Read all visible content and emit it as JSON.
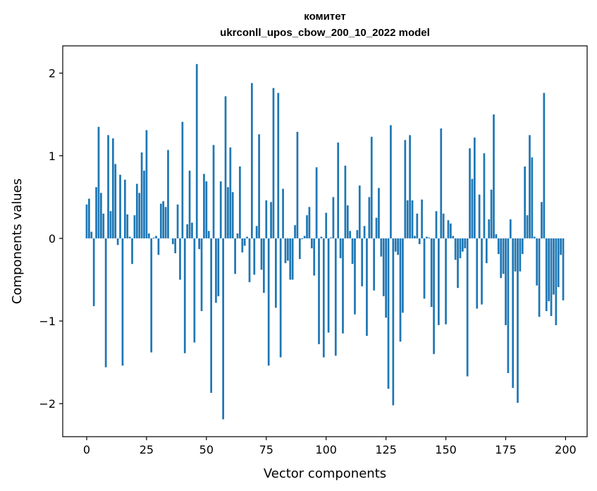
{
  "chart_data": {
    "type": "bar",
    "title": "комитет",
    "subtitle": "ukrconll_upos_cbow_200_10_2022 model",
    "xlabel": "Vector components",
    "ylabel": "Components values",
    "xlim": [
      -10,
      209
    ],
    "ylim": [
      -2.4,
      2.33
    ],
    "xticks": [
      0,
      25,
      50,
      75,
      100,
      125,
      150,
      175,
      200
    ],
    "yticks": [
      -2,
      -1,
      0,
      1,
      2
    ],
    "ytick_labels": [
      "−2",
      "−1",
      "0",
      "1",
      "2"
    ],
    "grid": false,
    "color": "#1f77b4",
    "x": [
      0,
      1,
      2,
      3,
      4,
      5,
      6,
      7,
      8,
      9,
      10,
      11,
      12,
      13,
      14,
      15,
      16,
      17,
      18,
      19,
      20,
      21,
      22,
      23,
      24,
      25,
      26,
      27,
      28,
      29,
      30,
      31,
      32,
      33,
      34,
      35,
      36,
      37,
      38,
      39,
      40,
      41,
      42,
      43,
      44,
      45,
      46,
      47,
      48,
      49,
      50,
      51,
      52,
      53,
      54,
      55,
      56,
      57,
      58,
      59,
      60,
      61,
      62,
      63,
      64,
      65,
      66,
      67,
      68,
      69,
      70,
      71,
      72,
      73,
      74,
      75,
      76,
      77,
      78,
      79,
      80,
      81,
      82,
      83,
      84,
      85,
      86,
      87,
      88,
      89,
      90,
      91,
      92,
      93,
      94,
      95,
      96,
      97,
      98,
      99,
      100,
      101,
      102,
      103,
      104,
      105,
      106,
      107,
      108,
      109,
      110,
      111,
      112,
      113,
      114,
      115,
      116,
      117,
      118,
      119,
      120,
      121,
      122,
      123,
      124,
      125,
      126,
      127,
      128,
      129,
      130,
      131,
      132,
      133,
      134,
      135,
      136,
      137,
      138,
      139,
      140,
      141,
      142,
      143,
      144,
      145,
      146,
      147,
      148,
      149,
      150,
      151,
      152,
      153,
      154,
      155,
      156,
      157,
      158,
      159,
      160,
      161,
      162,
      163,
      164,
      165,
      166,
      167,
      168,
      169,
      170,
      171,
      172,
      173,
      174,
      175,
      176,
      177,
      178,
      179,
      180,
      181,
      182,
      183,
      184,
      185,
      186,
      187,
      188,
      189,
      190,
      191,
      192,
      193,
      194,
      195,
      196,
      197,
      198,
      199
    ],
    "values": [
      0.41,
      0.48,
      0.08,
      -0.82,
      0.62,
      1.35,
      0.55,
      0.3,
      -1.56,
      1.25,
      0.33,
      1.21,
      0.9,
      -0.08,
      0.77,
      -1.54,
      0.71,
      0.29,
      0.02,
      -0.31,
      0.28,
      0.66,
      0.55,
      1.04,
      0.82,
      1.31,
      0.06,
      -1.38,
      0.01,
      0.03,
      -0.2,
      0.42,
      0.45,
      0.38,
      1.07,
      0.0,
      -0.07,
      -0.18,
      0.41,
      -0.5,
      1.41,
      -1.39,
      0.17,
      0.82,
      0.19,
      -1.26,
      2.11,
      -0.13,
      -0.88,
      0.78,
      0.69,
      0.09,
      -1.87,
      1.13,
      -0.78,
      -0.7,
      0.69,
      -2.19,
      1.72,
      0.62,
      1.1,
      0.56,
      -0.43,
      0.06,
      0.87,
      -0.17,
      -0.09,
      0.02,
      -0.53,
      1.88,
      -0.44,
      0.15,
      1.26,
      -0.38,
      -0.66,
      0.46,
      -1.54,
      0.44,
      1.82,
      -0.84,
      1.76,
      -1.44,
      0.6,
      -0.3,
      -0.27,
      -0.5,
      -0.5,
      0.16,
      1.29,
      -0.25,
      -0.01,
      0.03,
      0.28,
      0.38,
      -0.12,
      -0.45,
      0.86,
      -1.28,
      0.02,
      -1.44,
      0.31,
      -1.14,
      0.01,
      0.5,
      -1.42,
      1.16,
      -0.24,
      -1.15,
      0.88,
      0.4,
      0.09,
      -0.31,
      -0.92,
      0.1,
      0.64,
      -0.58,
      0.15,
      -1.18,
      0.5,
      1.23,
      -0.63,
      0.25,
      0.61,
      -0.22,
      -0.7,
      -0.96,
      -1.82,
      1.37,
      -2.02,
      -0.16,
      -0.2,
      -1.25,
      -0.9,
      1.19,
      0.46,
      1.25,
      0.46,
      0.03,
      0.3,
      -0.07,
      0.47,
      -0.73,
      0.02,
      0.01,
      -0.83,
      -1.4,
      0.33,
      -1.05,
      1.33,
      0.3,
      -1.04,
      0.22,
      0.18,
      0.03,
      -0.26,
      -0.6,
      -0.24,
      -0.16,
      -0.12,
      -1.67,
      1.09,
      0.72,
      1.22,
      -0.85,
      0.53,
      -0.8,
      1.03,
      -0.3,
      0.23,
      0.59,
      1.5,
      0.05,
      -0.19,
      -0.48,
      -0.43,
      -1.05,
      -1.63,
      0.23,
      -1.81,
      -0.4,
      -1.99,
      -0.4,
      -0.19,
      0.87,
      0.28,
      1.25,
      0.98,
      0.02,
      -0.57,
      -0.95,
      0.44,
      1.76,
      -0.88,
      -0.76,
      -0.94,
      -0.68,
      -1.05,
      -0.59,
      -0.2,
      -0.75
    ]
  }
}
